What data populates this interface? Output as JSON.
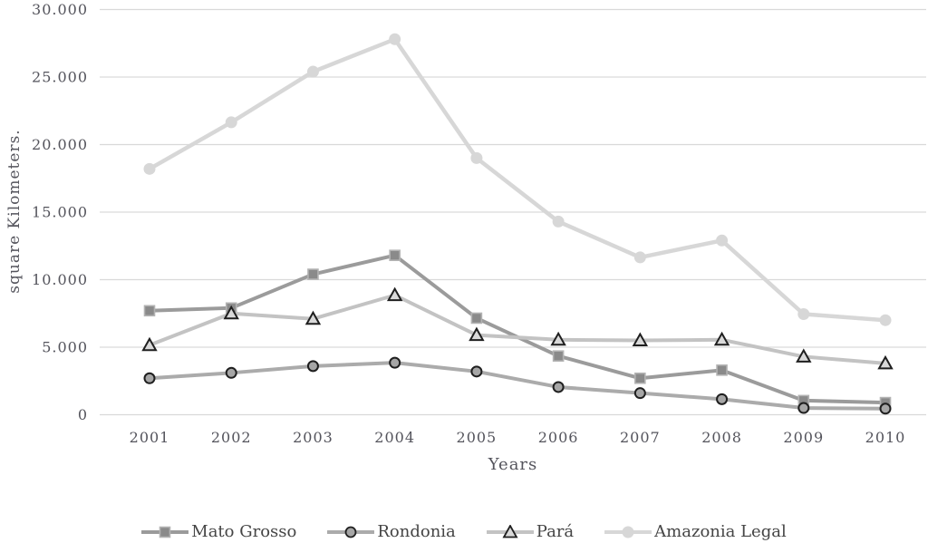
{
  "figure": {
    "background": "#ffffff",
    "text_color": "#54545c",
    "grid_color": "#d9d9d9"
  },
  "chart_data": {
    "type": "line",
    "title": "",
    "xlabel": "Years",
    "ylabel": "square Kilometers.",
    "categories": [
      "2001",
      "2002",
      "2003",
      "2004",
      "2005",
      "2006",
      "2007",
      "2008",
      "2009",
      "2010"
    ],
    "series": [
      {
        "name": "Mato Grosso",
        "marker": "square",
        "line_color": "#9b9b9b",
        "marker_fill": "#8a8a8a",
        "marker_stroke": "#b3b3b3",
        "line_width": 4,
        "values": [
          7700,
          7900,
          10400,
          11800,
          7150,
          4350,
          2700,
          3300,
          1050,
          900
        ]
      },
      {
        "name": "Rondonia",
        "marker": "circle",
        "line_color": "#ababab",
        "marker_fill": "#a6a6a6",
        "marker_stroke": "#1f1f1f",
        "line_width": 4,
        "values": [
          2700,
          3100,
          3600,
          3850,
          3200,
          2050,
          1600,
          1150,
          500,
          450
        ]
      },
      {
        "name": "Pará",
        "marker": "triangle",
        "line_color": "#c3c3c3",
        "marker_fill": "#d9d9d9",
        "marker_stroke": "#1f1f1f",
        "line_width": 4,
        "values": [
          5150,
          7500,
          7100,
          8850,
          5900,
          5550,
          5500,
          5550,
          4300,
          3800
        ]
      },
      {
        "name": "Amazonia Legal",
        "marker": "circle-plain",
        "line_color": "#d7d7d7",
        "marker_fill": "#d7d7d7",
        "marker_stroke": "none",
        "line_width": 4.5,
        "values": [
          18200,
          21650,
          25400,
          27800,
          19000,
          14300,
          11650,
          12900,
          7450,
          7000
        ]
      }
    ],
    "ylim": [
      0,
      30000
    ],
    "yticks": [
      {
        "value": 0,
        "label": "0"
      },
      {
        "value": 5000,
        "label": "5.000"
      },
      {
        "value": 10000,
        "label": "10.000"
      },
      {
        "value": 15000,
        "label": "15.000"
      },
      {
        "value": 20000,
        "label": "20.000"
      },
      {
        "value": 25000,
        "label": "25.000"
      },
      {
        "value": 30000,
        "label": "30.000"
      }
    ],
    "grid": "horizontal",
    "legend_position": "bottom"
  }
}
